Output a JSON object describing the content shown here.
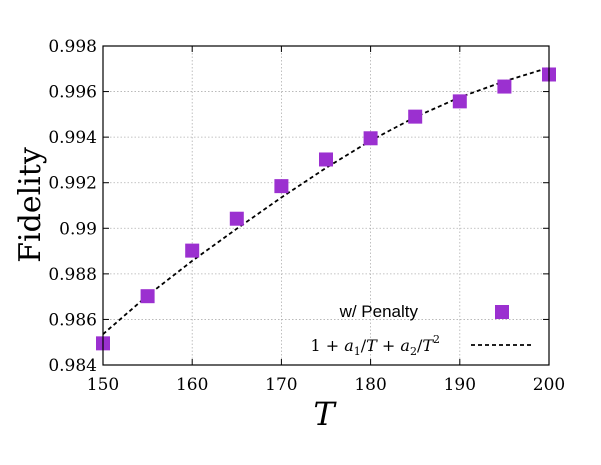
{
  "chart_data": {
    "type": "scatter",
    "xlabel": "T",
    "ylabel": "Fidelity",
    "xlim": [
      150,
      200
    ],
    "ylim": [
      0.984,
      0.998
    ],
    "x_ticks": [
      150,
      160,
      170,
      180,
      190,
      200
    ],
    "y_ticks": [
      0.984,
      0.986,
      0.988,
      0.99,
      0.992,
      0.994,
      0.996,
      0.998
    ],
    "x_tick_labels": [
      "150",
      "160",
      "170",
      "180",
      "190",
      "200"
    ],
    "y_tick_labels": [
      "0.984",
      "0.986",
      "0.988",
      "0.99",
      "0.992",
      "0.994",
      "0.996",
      "0.998"
    ],
    "grid": true,
    "legend_position": "bottom-right",
    "series": [
      {
        "name": "w/ Penalty",
        "kind": "scatter",
        "marker": "square",
        "color": "#9b30d0",
        "x": [
          150,
          155,
          160,
          165,
          170,
          175,
          180,
          185,
          190,
          195,
          200
        ],
        "y": [
          0.98495,
          0.98702,
          0.98902,
          0.99042,
          0.99185,
          0.99302,
          0.99395,
          0.9949,
          0.99557,
          0.99622,
          0.99675
        ]
      },
      {
        "name": "1 + a1/T + a2/T2",
        "kind": "line",
        "style": "dashed",
        "color": "#000000",
        "x": [
          150,
          155,
          160,
          165,
          170,
          175,
          180,
          185,
          190,
          195,
          200
        ],
        "y": [
          0.98535,
          0.98705,
          0.98857,
          0.98998,
          0.99135,
          0.99265,
          0.99385,
          0.99488,
          0.99575,
          0.99645,
          0.99705
        ]
      }
    ]
  }
}
